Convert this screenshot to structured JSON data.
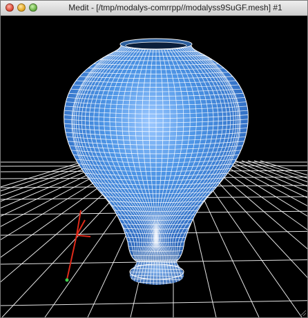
{
  "window": {
    "title": "Medit - [/tmp/modalys-comrrpp//modalyss9SuGF.mesh] #1"
  },
  "scene": {
    "background": "#000000",
    "mesh_color": "#3f86d6",
    "wire_color": "#ffffff",
    "floor_grid_color": "#ffffff",
    "axis_color": "#e02a1a"
  },
  "icons": {
    "close": "close-button",
    "minimize": "minimize-button",
    "zoom": "zoom-button",
    "resize": "resize-grip-icon"
  }
}
